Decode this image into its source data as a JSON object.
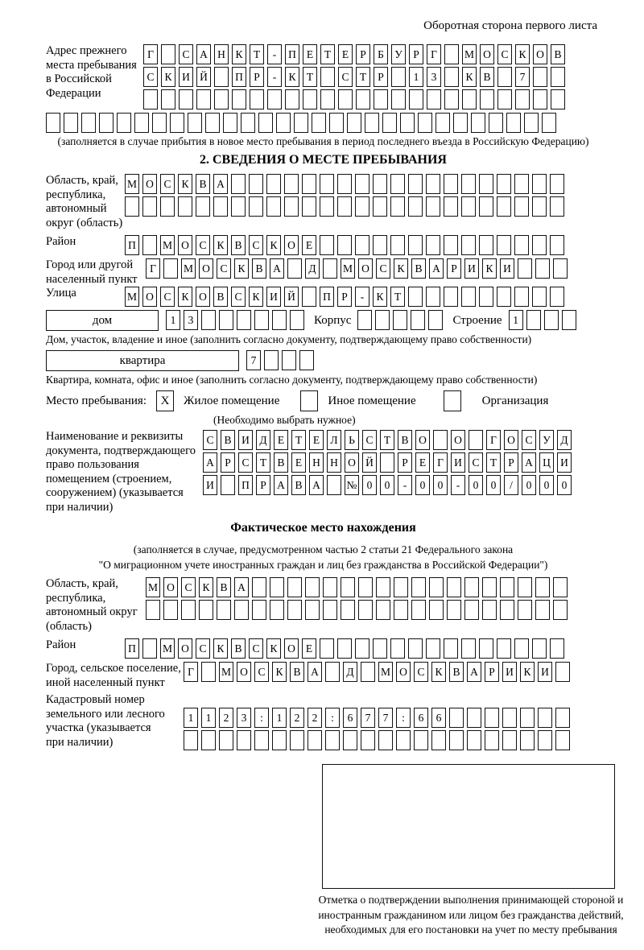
{
  "page": {
    "back_note": "Оборотная сторона первого листа"
  },
  "prev_address": {
    "label": "Адрес прежнего\nместа пребывания\nв Российской\nФедерации",
    "rows": [
      "Г САНКТ-ПЕТЕРБУРГ МОСКОВ",
      "СКИЙ ПР-КТ СТР 13 КВ 7",
      "",
      ""
    ],
    "note": "(заполняется в случае прибытия в новое место пребывания в период последнего въезда в Российскую Федерацию)"
  },
  "section2": {
    "title": "2. СВЕДЕНИЯ О МЕСТЕ ПРЕБЫВАНИЯ",
    "oblast": {
      "label": "Область, край,\nреспублика,\nавтономный\nокруг (область)",
      "row1": "МОСКВА",
      "row2": ""
    },
    "raion": {
      "label": "Район",
      "row": "П МОСКВСКОЕ"
    },
    "gorod": {
      "label": "Город или другой\nнаселенный пункт",
      "row": "Г МОСКВА Д МОСКВАРИКИ"
    },
    "ulitsa": {
      "label": "Улица",
      "row": "МОСКОВСКИЙ ПР-КТ"
    },
    "dom": {
      "box_label": "дом",
      "cells": "13",
      "korpus_label": "Корпус",
      "korpus_cells": "",
      "stroenie_label": "Строение",
      "stroenie_cells": "1",
      "caption": "Дом, участок, владение и иное (заполнить согласно документу, подтверждающему право собственности)"
    },
    "kvartira": {
      "box_label": "квартира",
      "cells": "7",
      "caption": "Квартира, комната, офис и иное (заполнить согласно документу, подтверждающему право собственности)"
    },
    "mesto": {
      "label": "Место пребывания:",
      "opt1_mark": "X",
      "opt1": "Жилое помещение",
      "opt2_mark": "",
      "opt2": "Иное помещение",
      "opt3_mark": "",
      "opt3": "Организация",
      "note": "(Необходимо выбрать нужное)"
    },
    "doc": {
      "label": "Наименование и реквизиты\nдокумента, подтверждающего\nправо пользования\nпомещением (строением,\nсооружением) (указывается\nпри наличии)",
      "rows": [
        "СВИДЕТЕЛЬСТВО О ГОСУД",
        "АРСТВЕННОЙ РЕГИСТРАЦИ",
        "И ПРАВА №00-00-00/000"
      ]
    }
  },
  "fact": {
    "title": "Фактическое место нахождения",
    "note1": "(заполняется в случае, предусмотренном частью 2 статьи 21 Федерального закона",
    "note2": "\"О миграционном учете иностранных граждан и лиц без гражданства в Российской Федерации\")",
    "oblast": {
      "label": "Область, край,\nреспублика,\nавтономный округ\n(область)",
      "row1": "МОСКВА",
      "row2": ""
    },
    "raion": {
      "label": "Район",
      "row": "П МОСКВСКОЕ"
    },
    "gorod": {
      "label": "Город, сельское поселение,\nиной населенный пункт",
      "row": "Г МОСКВА Д МОСКВАРИКИ"
    },
    "kadastr": {
      "label": "Кадастровый номер\nземельного или лесного\nучастка (указывается\nпри наличии)",
      "row1": "1123:122:677:66",
      "row2": ""
    },
    "stamp_caption": "Отметка о подтверждении выполнения принимающей стороной и иностранным гражданином или лицом без гражданства действий, необходимых для его постановки на учет по месту пребывания"
  }
}
